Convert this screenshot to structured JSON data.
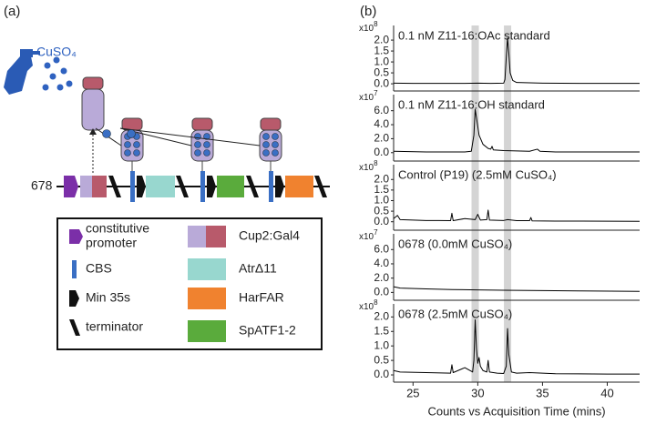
{
  "panel_a": {
    "label": "(a)",
    "inducer": "CuSO₄",
    "construct": "678",
    "legend": [
      [
        "constitutive",
        "promoter"
      ],
      [
        "Cup2:Gal4"
      ],
      [
        "CBS"
      ],
      [
        "AtrΔ11"
      ],
      [
        "Min 35s"
      ],
      [
        "HarFAR"
      ],
      [
        "terminator"
      ],
      [
        "SpATF1-2"
      ]
    ]
  },
  "panel_b": {
    "label": "(b)",
    "highlight_x": [
      29.8,
      32.3
    ]
  },
  "chart_data": [
    {
      "type": "line",
      "title": "0.1 nM Z11-16:OAc standard",
      "scale_base": "x10",
      "scale_exp": "8",
      "color": "#000000",
      "xlim": [
        23.5,
        42.5
      ],
      "ylim": [
        -0.33,
        2.67
      ],
      "yticks": [
        {
          "value": 0,
          "label": "0.0"
        },
        {
          "value": 0.5,
          "label": "0.5"
        },
        {
          "value": 1,
          "label": "1.0"
        },
        {
          "value": 1.5,
          "label": "1.5"
        },
        {
          "value": 2,
          "label": "2.0"
        }
      ],
      "x": [
        23.5,
        25,
        27,
        29,
        30,
        31,
        32,
        32.1,
        32.2,
        32.3,
        32.4,
        32.5,
        32.7,
        33,
        35,
        38,
        42.5
      ],
      "values": [
        0.03,
        0.02,
        0.02,
        0.02,
        0.03,
        0.02,
        0.03,
        0.2,
        1.2,
        2.1,
        1.4,
        0.5,
        0.15,
        0.06,
        0.03,
        0.02,
        0.02
      ]
    },
    {
      "type": "line",
      "title": "0.1 nM Z11-16:OH standard",
      "scale_base": "x10",
      "scale_exp": "7",
      "color": "#000000",
      "xlim": [
        23.5,
        42.5
      ],
      "ylim": [
        -1.2,
        8.3
      ],
      "yticks": [
        {
          "value": 0,
          "label": "0.0"
        },
        {
          "value": 2,
          "label": "2.0"
        },
        {
          "value": 4,
          "label": "4.0"
        },
        {
          "value": 6,
          "label": "6.0"
        }
      ],
      "x": [
        23.5,
        26,
        29,
        29.5,
        29.7,
        29.8,
        29.9,
        30.1,
        30.4,
        30.8,
        31,
        31.1,
        31.2,
        32,
        34,
        34.6,
        34.8,
        36,
        42.5
      ],
      "values": [
        0.2,
        0.1,
        0.1,
        0.2,
        2.5,
        6.2,
        5.0,
        2.5,
        1.2,
        0.6,
        0.5,
        0.9,
        0.4,
        0.3,
        0.2,
        0.5,
        0.2,
        0.1,
        0.1
      ]
    },
    {
      "type": "line",
      "title": "Control (P19) (2.5mM CuSO₄)",
      "scale_base": "x10",
      "scale_exp": "8",
      "color": "#000000",
      "xlim": [
        23.5,
        42.5
      ],
      "ylim": [
        -0.4,
        2.7
      ],
      "yticks": [
        {
          "value": 0,
          "label": "0.0"
        },
        {
          "value": 0.5,
          "label": "0.5"
        },
        {
          "value": 1,
          "label": "1.0"
        },
        {
          "value": 1.5,
          "label": "1.5"
        },
        {
          "value": 2,
          "label": "2.0"
        }
      ],
      "x": [
        23.5,
        23.8,
        24,
        25,
        26,
        27,
        27.9,
        28,
        28.1,
        29,
        29.8,
        30,
        30.2,
        30.7,
        30.8,
        30.9,
        32,
        32.3,
        33,
        34,
        34.1,
        34.2,
        36,
        38,
        42.5
      ],
      "values": [
        0.15,
        0.3,
        0.1,
        0.08,
        0.06,
        0.06,
        0.05,
        0.4,
        0.05,
        0.15,
        0.1,
        0.35,
        0.08,
        0.1,
        0.55,
        0.08,
        0.06,
        0.1,
        0.05,
        0.05,
        0.2,
        0.04,
        0.03,
        0.03,
        0.02
      ]
    },
    {
      "type": "line",
      "title": "0678 (0.0mM CuSO₄)",
      "scale_base": "x10",
      "scale_exp": "7",
      "color": "#000000",
      "xlim": [
        23.5,
        42.5
      ],
      "ylim": [
        -1.1,
        8.2
      ],
      "yticks": [
        {
          "value": 0,
          "label": "0.0"
        },
        {
          "value": 2,
          "label": "2.0"
        },
        {
          "value": 4,
          "label": "4.0"
        },
        {
          "value": 6,
          "label": "6.0"
        }
      ],
      "x": [
        23.5,
        24,
        26,
        28,
        30,
        32,
        35,
        38,
        42.5
      ],
      "values": [
        0.8,
        0.6,
        0.5,
        0.4,
        0.35,
        0.3,
        0.25,
        0.2,
        0.15
      ]
    },
    {
      "type": "line",
      "title": "0678 (2.5mM CuSO₄)",
      "scale_base": "x10",
      "scale_exp": "8",
      "color": "#000000",
      "xlim": [
        23.5,
        42.5
      ],
      "ylim": [
        -0.25,
        2.45
      ],
      "yticks": [
        {
          "value": 0,
          "label": "0.0"
        },
        {
          "value": 0.5,
          "label": "0.5"
        },
        {
          "value": 1,
          "label": "1.0"
        },
        {
          "value": 1.5,
          "label": "1.5"
        },
        {
          "value": 2,
          "label": "2.0"
        }
      ],
      "xticks": [
        25,
        30,
        35,
        40
      ],
      "xlabel": "Counts vs Acquisition Time (mins)",
      "x": [
        23.5,
        24,
        26,
        27.9,
        28,
        28.1,
        29,
        29.6,
        29.7,
        29.8,
        29.9,
        30,
        30.1,
        30.2,
        30.4,
        30.7,
        30.8,
        30.9,
        31.5,
        32,
        32.2,
        32.3,
        32.4,
        32.6,
        33,
        34,
        36,
        40,
        42.5
      ],
      "values": [
        0.15,
        0.1,
        0.08,
        0.06,
        0.35,
        0.08,
        0.25,
        0.1,
        0.5,
        1.9,
        0.9,
        0.4,
        0.6,
        0.3,
        0.15,
        0.1,
        0.5,
        0.1,
        0.06,
        0.05,
        0.3,
        1.6,
        0.7,
        0.1,
        0.06,
        0.08,
        0.04,
        0.03,
        0.03
      ]
    }
  ]
}
